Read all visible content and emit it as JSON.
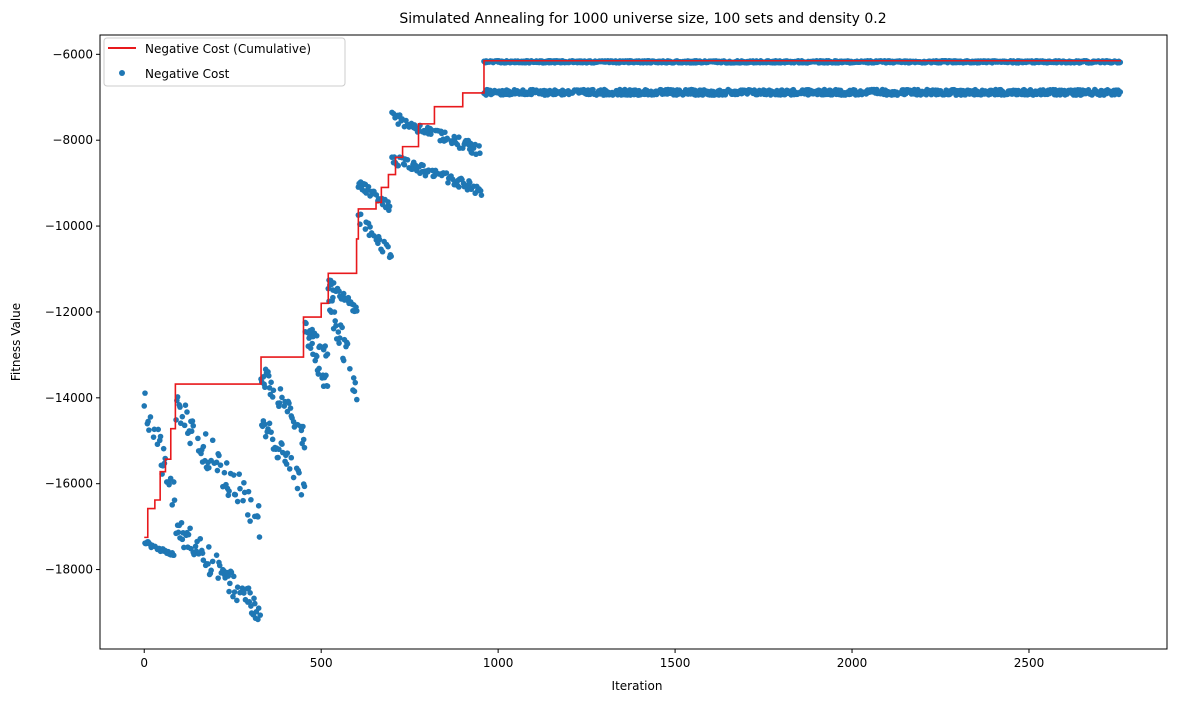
{
  "chart_data": {
    "type": "scatter",
    "title": "Simulated Annealing for 1000 universe size, 100 sets and density 0.2",
    "xlabel": "Iteration",
    "ylabel": "Fitness Value",
    "xlim": [
      -125,
      2890
    ],
    "ylim": [
      -19850,
      -5550
    ],
    "xticks": [
      0,
      500,
      1000,
      1500,
      2000,
      2500
    ],
    "yticks": [
      -18000,
      -16000,
      -14000,
      -12000,
      -10000,
      -8000,
      -6000
    ],
    "grid": false,
    "legend_position": "top-left",
    "colors": {
      "line": "#e8191c",
      "scatter": "#1f77b4"
    },
    "series": [
      {
        "name": "Negative Cost (Cumulative)",
        "kind": "step-line",
        "points": [
          [
            0,
            -17250
          ],
          [
            10,
            -16580
          ],
          [
            30,
            -16380
          ],
          [
            45,
            -15720
          ],
          [
            60,
            -15430
          ],
          [
            75,
            -14720
          ],
          [
            88,
            -13680
          ],
          [
            330,
            -13050
          ],
          [
            450,
            -12120
          ],
          [
            500,
            -11800
          ],
          [
            520,
            -11100
          ],
          [
            600,
            -10300
          ],
          [
            605,
            -9600
          ],
          [
            655,
            -9450
          ],
          [
            670,
            -9100
          ],
          [
            690,
            -8800
          ],
          [
            710,
            -8400
          ],
          [
            730,
            -8150
          ],
          [
            775,
            -7620
          ],
          [
            820,
            -7220
          ],
          [
            900,
            -6900
          ],
          [
            950,
            -6900
          ],
          [
            960,
            -6150
          ],
          [
            2760,
            -6150
          ]
        ]
      },
      {
        "name": "Negative Cost",
        "kind": "scatter",
        "phases": [
          {
            "x": [
              0,
              90
            ],
            "y": [
              [
                -17300,
                -17750
              ],
              [
                -13700,
                -16800
              ]
            ]
          },
          {
            "x": [
              90,
              330
            ],
            "y": [
              [
                -13850,
                -17300
              ],
              [
                -16700,
                -19300
              ]
            ]
          },
          {
            "x": [
              330,
              455
            ],
            "y": [
              [
                -13100,
                -15200
              ],
              [
                -14200,
                -16500
              ]
            ]
          },
          {
            "x": [
              455,
              520
            ],
            "y": [
              [
                -12200,
                -13100
              ],
              [
                -12300,
                -14000
              ]
            ]
          },
          {
            "x": [
              520,
              605
            ],
            "y": [
              [
                -11200,
                -12100
              ],
              [
                -11300,
                -14300
              ]
            ]
          },
          {
            "x": [
              605,
              700
            ],
            "y": [
              [
                -9600,
                -10900
              ],
              [
                -8900,
                -9700
              ]
            ]
          },
          {
            "x": [
              700,
              955
            ],
            "y": [
              [
                -8300,
                -9300
              ],
              [
                -7300,
                -8400
              ]
            ]
          },
          {
            "x": [
              960,
              2760
            ],
            "y": [
              [
                -6150,
                -6200
              ],
              [
                -6820,
                -6950
              ]
            ]
          }
        ]
      }
    ]
  }
}
